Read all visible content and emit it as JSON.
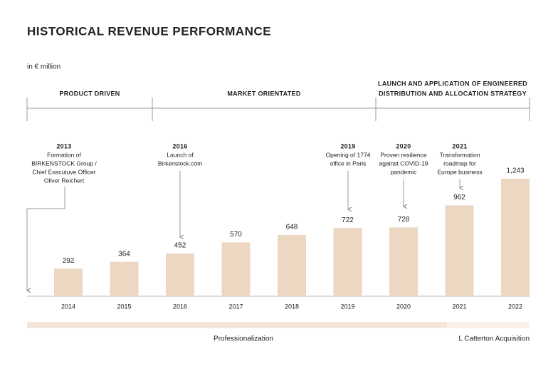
{
  "chart_data": {
    "type": "bar",
    "title": "HISTORICAL REVENUE PERFORMANCE",
    "subtitle": "in € million",
    "categories": [
      "2014",
      "2015",
      "2016",
      "2017",
      "2018",
      "2019",
      "2020",
      "2021",
      "2022"
    ],
    "values": [
      292,
      364,
      452,
      570,
      648,
      722,
      728,
      962,
      1243
    ],
    "value_labels": [
      "292",
      "364",
      "452",
      "570",
      "648",
      "722",
      "728",
      "962",
      "1,243"
    ],
    "color": "#ecd7c3",
    "phases": [
      {
        "lines": [
          "PRODUCT DRIVEN"
        ]
      },
      {
        "lines": [
          "MARKET ORIENTATED"
        ]
      },
      {
        "lines": [
          "LAUNCH AND APPLICATION OF ENGINEERED",
          "DISTRIBUTION AND ALLOCATION STRATEGY"
        ]
      }
    ],
    "annotations": [
      {
        "year": "2013",
        "lines": [
          "Formation of",
          "BIRKENSTOCK Group /",
          "Chief Executuve Officer",
          "Oliver Reichert"
        ]
      },
      {
        "year": "2016",
        "lines": [
          "Launch of",
          "Birkenstock.com"
        ]
      },
      {
        "year": "2019",
        "lines": [
          "Opening of 1774",
          "office in Paris"
        ]
      },
      {
        "year": "2020",
        "lines": [
          "Proven resilience",
          "against COVID-19",
          "pandemic"
        ]
      },
      {
        "year": "2021",
        "lines": [
          "Transformation",
          "roadmap for",
          "Europe business"
        ]
      }
    ],
    "periods": [
      "Professionalization",
      "L Catterton Acquisition"
    ]
  }
}
